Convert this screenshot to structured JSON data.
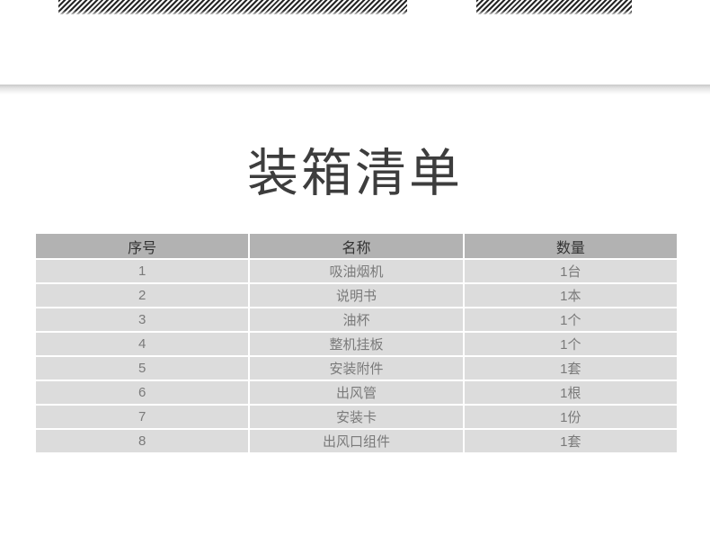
{
  "page": {
    "title": "装箱清单"
  },
  "decor": {
    "top_left_strip": "hatched-diagonal-stripe-bar",
    "top_right_strip": "hatched-diagonal-stripe-bar",
    "divider": "page-separator-shadow"
  },
  "table": {
    "headers": [
      "序号",
      "名称",
      "数量"
    ],
    "rows": [
      [
        "1",
        "吸油烟机",
        "1台"
      ],
      [
        "2",
        "说明书",
        "1本"
      ],
      [
        "3",
        "油杯",
        "1个"
      ],
      [
        "4",
        "整机挂板",
        "1个"
      ],
      [
        "5",
        "安装附件",
        "1套"
      ],
      [
        "6",
        "出风管",
        "1根"
      ],
      [
        "7",
        "安装卡",
        "1份"
      ],
      [
        "8",
        "出风口组件",
        "1套"
      ]
    ]
  },
  "colors": {
    "title_text": "#3d3d3d",
    "header_bg": "#b2b2b2",
    "header_text": "#333333",
    "row_bg": "#dcdcdc",
    "row_text": "#7a7a7a",
    "stripe": "#262626"
  }
}
